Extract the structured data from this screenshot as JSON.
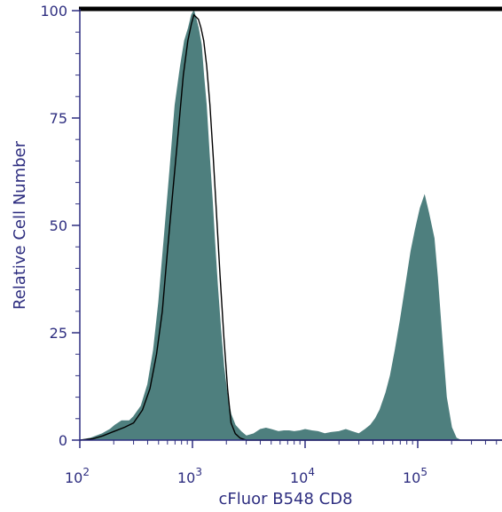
{
  "chart_data": {
    "type": "area",
    "title": "",
    "xlabel": "cFluor B548 CD8",
    "ylabel": "Relative Cell Number",
    "x_scale": "log",
    "xlim": [
      100,
      560000
    ],
    "ylim": [
      0,
      100
    ],
    "x_ticks": [
      {
        "value": 100,
        "base": "10",
        "exp": "2"
      },
      {
        "value": 1000,
        "base": "10",
        "exp": "3"
      },
      {
        "value": 10000,
        "base": "10",
        "exp": "4"
      },
      {
        "value": 100000,
        "base": "10",
        "exp": "5"
      }
    ],
    "y_ticks": [
      0,
      25,
      50,
      75,
      100
    ],
    "grid": false,
    "colors": {
      "filled": "#4e7f7e",
      "outline": "#000000",
      "axis": "#2e2e80"
    },
    "series": [
      {
        "style": "filled",
        "x": [
          100,
          125,
          158,
          185,
          205,
          235,
          275,
          300,
          350,
          400,
          450,
          500,
          560,
          630,
          700,
          780,
          850,
          920,
          980,
          1030,
          1080,
          1130,
          1200,
          1260,
          1330,
          1410,
          1500,
          1580,
          1670,
          1780,
          1900,
          2050,
          2200,
          2400,
          2700,
          3000,
          3500,
          4000,
          4500,
          5000,
          5800,
          6500,
          7200,
          8000,
          9000,
          10000,
          11500,
          13000,
          15000,
          17000,
          20000,
          23000,
          26000,
          30000,
          34000,
          38000,
          42000,
          46000,
          52000,
          57000,
          63000,
          70000,
          78000,
          87000,
          95000,
          105000,
          115000,
          125000,
          140000,
          150000,
          165000,
          180000,
          200000,
          220000,
          240000,
          260000,
          280000,
          560000
        ],
        "y": [
          0,
          0.5,
          1.5,
          2.5,
          3.5,
          4.5,
          4.5,
          5.5,
          8,
          13,
          21,
          32,
          47,
          63,
          78,
          87,
          93,
          96,
          99,
          100,
          98,
          96,
          92,
          85,
          78,
          67,
          56,
          46,
          36,
          26,
          17,
          10,
          6,
          3.5,
          2,
          1,
          1.5,
          2.5,
          2.8,
          2.5,
          2,
          2.2,
          2.2,
          2,
          2.2,
          2.5,
          2.2,
          2,
          1.5,
          1.8,
          2,
          2.5,
          2,
          1.5,
          2.5,
          3.5,
          5,
          7,
          11,
          15,
          21,
          28,
          36,
          44,
          49,
          54,
          57,
          53,
          47,
          38,
          23,
          10,
          3,
          0.5,
          0,
          0,
          0,
          0
        ]
      },
      {
        "style": "outline",
        "x": [
          100,
          130,
          160,
          200,
          250,
          300,
          360,
          420,
          480,
          540,
          600,
          670,
          750,
          830,
          910,
          980,
          1030,
          1080,
          1130,
          1190,
          1260,
          1340,
          1430,
          1530,
          1640,
          1760,
          1900,
          2050,
          2200,
          2400,
          2650,
          3000,
          3500,
          4000,
          560000
        ],
        "y": [
          0,
          0.3,
          1,
          2,
          3,
          4,
          7,
          12,
          20,
          30,
          44,
          58,
          72,
          85,
          93,
          97,
          99,
          98.5,
          98,
          96,
          93,
          87,
          78,
          66,
          52,
          38,
          24,
          12,
          4,
          1.5,
          0.5,
          0,
          0,
          0,
          0
        ]
      }
    ]
  }
}
